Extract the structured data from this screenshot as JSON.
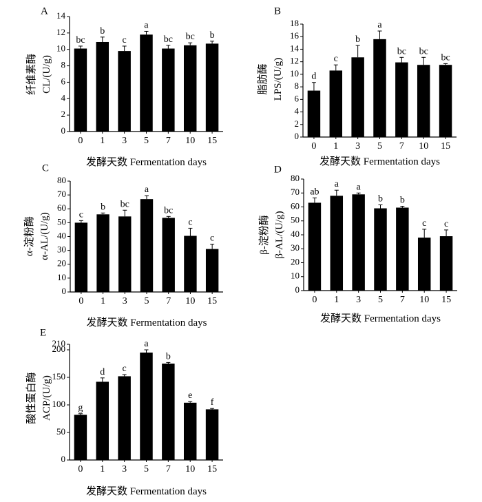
{
  "figure": {
    "panels": [
      "A",
      "B",
      "C",
      "D",
      "E"
    ]
  },
  "chart_data": [
    {
      "panel": "A",
      "type": "bar",
      "categories": [
        "0",
        "1",
        "3",
        "5",
        "7",
        "10",
        "15"
      ],
      "values": [
        10.1,
        10.9,
        9.8,
        11.8,
        10.1,
        10.5,
        10.7
      ],
      "errors": [
        0.3,
        0.6,
        0.6,
        0.4,
        0.4,
        0.3,
        0.3
      ],
      "significance": [
        "bc",
        "b",
        "c",
        "a",
        "bc",
        "bc",
        "b"
      ],
      "ylabel_lines": [
        "纤维素酶",
        "CL/(U/g)"
      ],
      "xlabel": "发酵天数  Fermentation days",
      "ylim": [
        0,
        14
      ],
      "yticks": [
        0,
        2,
        4,
        6,
        8,
        10,
        12,
        14
      ]
    },
    {
      "panel": "B",
      "type": "bar",
      "categories": [
        "0",
        "1",
        "3",
        "5",
        "7",
        "10",
        "15"
      ],
      "values": [
        7.4,
        10.6,
        12.7,
        15.6,
        11.9,
        11.5,
        11.5
      ],
      "errors": [
        1.3,
        0.9,
        1.9,
        1.3,
        0.8,
        1.2,
        0.2
      ],
      "significance": [
        "d",
        "c",
        "b",
        "a",
        "bc",
        "bc",
        "bc"
      ],
      "ylabel_lines": [
        "脂肪酶",
        "LPS/(U/g)"
      ],
      "xlabel": "发酵天数  Fermentation days",
      "ylim": [
        0,
        18
      ],
      "yticks": [
        0,
        2,
        4,
        6,
        8,
        10,
        12,
        14,
        16,
        18
      ]
    },
    {
      "panel": "C",
      "type": "bar",
      "categories": [
        "0",
        "1",
        "3",
        "5",
        "7",
        "10",
        "15"
      ],
      "values": [
        50,
        56,
        54.5,
        67,
        53.5,
        40.5,
        31
      ],
      "errors": [
        1.5,
        1,
        4.5,
        2.5,
        1,
        5.5,
        3.5
      ],
      "significance": [
        "c",
        "b",
        "bc",
        "a",
        "bc",
        "c",
        "c"
      ],
      "ylabel_lines": [
        "α-淀粉酶",
        "α-AL/(U/g)"
      ],
      "xlabel": "发酵天数  Fermentation days",
      "ylim": [
        0,
        80
      ],
      "yticks": [
        0,
        10,
        20,
        30,
        40,
        50,
        60,
        70,
        80
      ]
    },
    {
      "panel": "D",
      "type": "bar",
      "categories": [
        "0",
        "1",
        "3",
        "5",
        "7",
        "10",
        "15"
      ],
      "values": [
        63,
        68,
        69,
        59,
        59.5,
        38,
        39
      ],
      "errors": [
        3.5,
        4,
        1,
        2.5,
        1,
        6,
        4.5
      ],
      "significance": [
        "ab",
        "a",
        "a",
        "b",
        "b",
        "c",
        "c"
      ],
      "ylabel_lines": [
        "β-淀粉酶",
        "β-AL/(U/g)"
      ],
      "xlabel": "发酵天数  Fermentation days",
      "ylim": [
        0,
        80
      ],
      "yticks": [
        0,
        10,
        20,
        30,
        40,
        50,
        60,
        70,
        80
      ]
    },
    {
      "panel": "E",
      "type": "bar",
      "categories": [
        "0",
        "1",
        "3",
        "5",
        "7",
        "10",
        "15"
      ],
      "values": [
        82,
        142,
        152,
        195,
        175,
        104,
        92
      ],
      "errors": [
        2,
        7,
        3,
        5,
        2,
        2,
        1.5
      ],
      "significance": [
        "g",
        "d",
        "c",
        "a",
        "b",
        "e",
        "f"
      ],
      "ylabel_lines": [
        "酸性蛋白酶",
        "ACP/(U/g)"
      ],
      "xlabel": "发酵天数  Fermentation days",
      "ylim": [
        0,
        210
      ],
      "yticks": [
        0,
        50,
        100,
        150,
        200,
        210
      ]
    }
  ]
}
